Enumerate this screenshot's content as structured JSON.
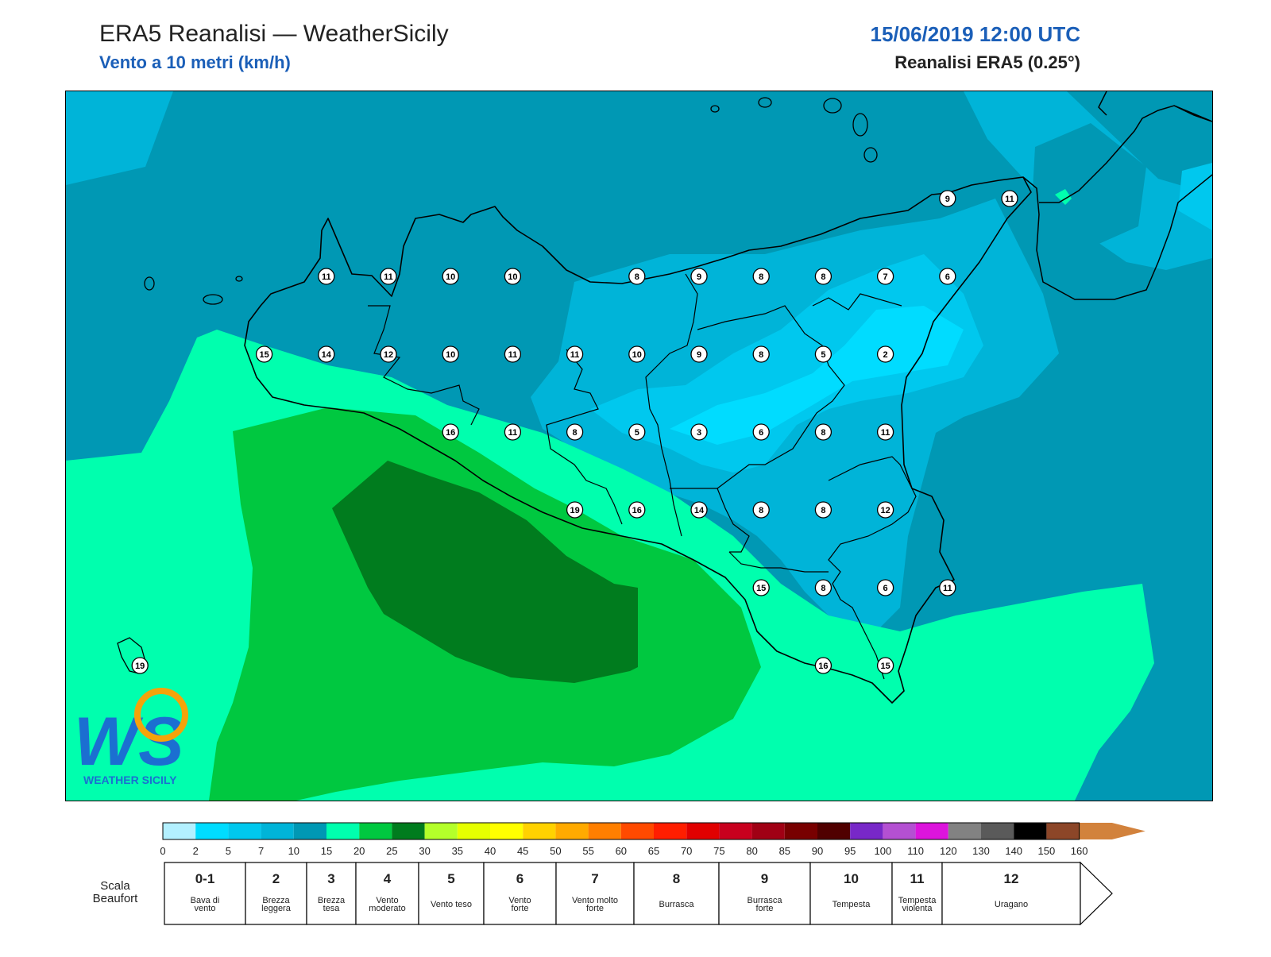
{
  "header": {
    "title": "ERA5 Reanalisi — WeatherSicily",
    "subtitle": "Vento a 10 metri (km/h)",
    "datetime": "15/06/2019 12:00 UTC",
    "model": "Reanalisi ERA5 (0.25°)"
  },
  "logo": {
    "text": "WEATHER SICILY",
    "monogram": "WS"
  },
  "map": {
    "station_values": [
      {
        "value": 9,
        "col": 14,
        "row": 0
      },
      {
        "value": 11,
        "col": 15,
        "row": 0
      },
      {
        "value": 11,
        "col": 4,
        "row": 1
      },
      {
        "value": 11,
        "col": 5,
        "row": 1
      },
      {
        "value": 10,
        "col": 6,
        "row": 1
      },
      {
        "value": 10,
        "col": 7,
        "row": 1
      },
      {
        "value": 8,
        "col": 9,
        "row": 1
      },
      {
        "value": 9,
        "col": 10,
        "row": 1
      },
      {
        "value": 8,
        "col": 11,
        "row": 1
      },
      {
        "value": 8,
        "col": 12,
        "row": 1
      },
      {
        "value": 7,
        "col": 13,
        "row": 1
      },
      {
        "value": 6,
        "col": 14,
        "row": 1
      },
      {
        "value": 15,
        "col": 3,
        "row": 2
      },
      {
        "value": 14,
        "col": 4,
        "row": 2
      },
      {
        "value": 12,
        "col": 5,
        "row": 2
      },
      {
        "value": 10,
        "col": 6,
        "row": 2
      },
      {
        "value": 11,
        "col": 7,
        "row": 2
      },
      {
        "value": 11,
        "col": 8,
        "row": 2
      },
      {
        "value": 10,
        "col": 9,
        "row": 2
      },
      {
        "value": 9,
        "col": 10,
        "row": 2
      },
      {
        "value": 8,
        "col": 11,
        "row": 2
      },
      {
        "value": 5,
        "col": 12,
        "row": 2
      },
      {
        "value": 2,
        "col": 13,
        "row": 2
      },
      {
        "value": 16,
        "col": 6,
        "row": 3
      },
      {
        "value": 11,
        "col": 7,
        "row": 3
      },
      {
        "value": 8,
        "col": 8,
        "row": 3
      },
      {
        "value": 5,
        "col": 9,
        "row": 3
      },
      {
        "value": 3,
        "col": 10,
        "row": 3
      },
      {
        "value": 6,
        "col": 11,
        "row": 3
      },
      {
        "value": 8,
        "col": 12,
        "row": 3
      },
      {
        "value": 11,
        "col": 13,
        "row": 3
      },
      {
        "value": 19,
        "col": 8,
        "row": 4
      },
      {
        "value": 16,
        "col": 9,
        "row": 4
      },
      {
        "value": 14,
        "col": 10,
        "row": 4
      },
      {
        "value": 8,
        "col": 11,
        "row": 4
      },
      {
        "value": 8,
        "col": 12,
        "row": 4
      },
      {
        "value": 12,
        "col": 13,
        "row": 4
      },
      {
        "value": 15,
        "col": 11,
        "row": 5
      },
      {
        "value": 8,
        "col": 12,
        "row": 5
      },
      {
        "value": 6,
        "col": 13,
        "row": 5
      },
      {
        "value": 11,
        "col": 14,
        "row": 5
      },
      {
        "value": 19,
        "col": 1,
        "row": 6
      },
      {
        "value": 16,
        "col": 12,
        "row": 6
      },
      {
        "value": 15,
        "col": 13,
        "row": 6
      }
    ]
  },
  "colorbar": {
    "ticks": [
      "0",
      "2",
      "5",
      "7",
      "10",
      "15",
      "20",
      "25",
      "30",
      "35",
      "40",
      "45",
      "50",
      "55",
      "60",
      "65",
      "70",
      "75",
      "80",
      "85",
      "90",
      "95",
      "100",
      "110",
      "120",
      "130",
      "140",
      "150",
      "160"
    ],
    "colors": [
      "#b3f0ff",
      "#00dcff",
      "#00c8ee",
      "#00b4d8",
      "#0098b4",
      "#00ffae",
      "#00c840",
      "#007c1e",
      "#b4ff2a",
      "#e6ff00",
      "#ffff00",
      "#ffd200",
      "#ffaa00",
      "#ff7f00",
      "#ff4a00",
      "#ff1e00",
      "#e10000",
      "#c8001e",
      "#a00014",
      "#780000",
      "#500000",
      "#7828c8",
      "#b450d2",
      "#dc14dc",
      "#828282",
      "#5a5a5a",
      "#000000",
      "#8c4628",
      "#d2823c"
    ]
  },
  "beaufort": {
    "label": "Scala Beaufort",
    "classes": [
      {
        "num": "0-1",
        "name": "Bava di vento"
      },
      {
        "num": "2",
        "name": "Brezza leggera"
      },
      {
        "num": "3",
        "name": "Brezza tesa"
      },
      {
        "num": "4",
        "name": "Vento moderato"
      },
      {
        "num": "5",
        "name": "Vento teso"
      },
      {
        "num": "6",
        "name": "Vento forte"
      },
      {
        "num": "7",
        "name": "Vento molto forte"
      },
      {
        "num": "8",
        "name": "Burrasca"
      },
      {
        "num": "9",
        "name": "Burrasca forte"
      },
      {
        "num": "10",
        "name": "Tempesta"
      },
      {
        "num": "11",
        "name": "Tempesta violenta"
      },
      {
        "num": "12",
        "name": "Uragano"
      }
    ]
  }
}
